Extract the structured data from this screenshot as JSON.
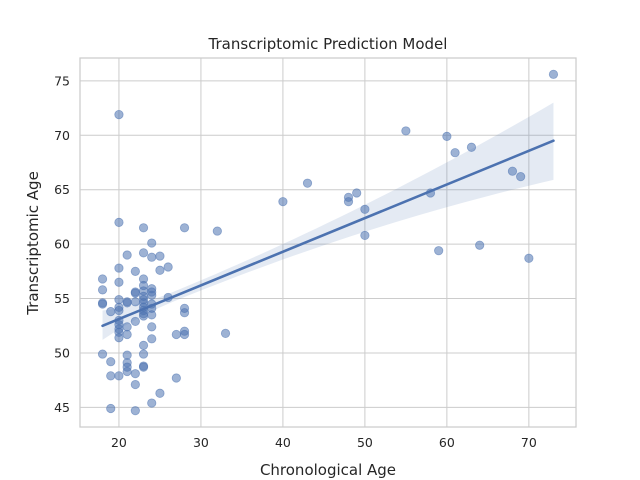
{
  "chart_data": {
    "type": "scatter",
    "title": "Transcriptomic Prediction Model",
    "xlabel": "Chronological Age",
    "ylabel": "Transcriptomic Age",
    "xlim": [
      15.25,
      75.75
    ],
    "ylim": [
      43.2,
      77.1
    ],
    "xticks": [
      20,
      30,
      40,
      50,
      60,
      70
    ],
    "yticks": [
      45,
      50,
      55,
      60,
      65,
      70,
      75
    ],
    "grid": true,
    "colors": {
      "points": "#4c72b0",
      "regression_line": "#4c72b0",
      "confidence_band": "#4c72b0",
      "grid": "#cccccc",
      "axes_edge": "#cccccc"
    },
    "regression": {
      "x": [
        18,
        73
      ],
      "y": [
        52.5,
        69.5
      ],
      "ci_lower": [
        51.2,
        65.9
      ],
      "ci_upper": [
        53.9,
        73.0
      ]
    },
    "points": [
      {
        "x": 18,
        "y": 56.8
      },
      {
        "x": 18,
        "y": 55.8
      },
      {
        "x": 18,
        "y": 54.6
      },
      {
        "x": 18,
        "y": 54.5
      },
      {
        "x": 18,
        "y": 49.9
      },
      {
        "x": 19,
        "y": 53.8
      },
      {
        "x": 19,
        "y": 49.2
      },
      {
        "x": 19,
        "y": 47.9
      },
      {
        "x": 19,
        "y": 44.9
      },
      {
        "x": 20,
        "y": 71.9
      },
      {
        "x": 20,
        "y": 62.0
      },
      {
        "x": 20,
        "y": 57.8
      },
      {
        "x": 20,
        "y": 56.5
      },
      {
        "x": 20,
        "y": 54.9
      },
      {
        "x": 20,
        "y": 54.2
      },
      {
        "x": 20,
        "y": 53.9
      },
      {
        "x": 20,
        "y": 53.0
      },
      {
        "x": 20,
        "y": 52.6
      },
      {
        "x": 20,
        "y": 52.2
      },
      {
        "x": 20,
        "y": 51.9
      },
      {
        "x": 20,
        "y": 51.4
      },
      {
        "x": 20,
        "y": 47.9
      },
      {
        "x": 21,
        "y": 59.0
      },
      {
        "x": 21,
        "y": 54.7
      },
      {
        "x": 21,
        "y": 54.6
      },
      {
        "x": 21,
        "y": 52.4
      },
      {
        "x": 21,
        "y": 51.7
      },
      {
        "x": 21,
        "y": 49.8
      },
      {
        "x": 21,
        "y": 49.1
      },
      {
        "x": 21,
        "y": 48.7
      },
      {
        "x": 21,
        "y": 48.3
      },
      {
        "x": 22,
        "y": 57.5
      },
      {
        "x": 22,
        "y": 55.6
      },
      {
        "x": 22,
        "y": 55.5
      },
      {
        "x": 22,
        "y": 54.7
      },
      {
        "x": 22,
        "y": 52.9
      },
      {
        "x": 22,
        "y": 48.1
      },
      {
        "x": 22,
        "y": 47.1
      },
      {
        "x": 22,
        "y": 44.7
      },
      {
        "x": 23,
        "y": 61.5
      },
      {
        "x": 23,
        "y": 59.2
      },
      {
        "x": 23,
        "y": 56.8
      },
      {
        "x": 23,
        "y": 56.2
      },
      {
        "x": 23,
        "y": 55.7
      },
      {
        "x": 23,
        "y": 55.2
      },
      {
        "x": 23,
        "y": 54.9
      },
      {
        "x": 23,
        "y": 54.6
      },
      {
        "x": 23,
        "y": 54.2
      },
      {
        "x": 23,
        "y": 53.9
      },
      {
        "x": 23,
        "y": 53.6
      },
      {
        "x": 23,
        "y": 53.4
      },
      {
        "x": 23,
        "y": 50.7
      },
      {
        "x": 23,
        "y": 49.9
      },
      {
        "x": 23,
        "y": 48.8
      },
      {
        "x": 23,
        "y": 48.7
      },
      {
        "x": 24,
        "y": 60.1
      },
      {
        "x": 24,
        "y": 58.8
      },
      {
        "x": 24,
        "y": 55.9
      },
      {
        "x": 24,
        "y": 55.6
      },
      {
        "x": 24,
        "y": 55.3
      },
      {
        "x": 24,
        "y": 54.5
      },
      {
        "x": 24,
        "y": 54.1
      },
      {
        "x": 24,
        "y": 53.5
      },
      {
        "x": 24,
        "y": 52.4
      },
      {
        "x": 24,
        "y": 51.3
      },
      {
        "x": 24,
        "y": 45.4
      },
      {
        "x": 25,
        "y": 58.9
      },
      {
        "x": 25,
        "y": 57.6
      },
      {
        "x": 25,
        "y": 46.3
      },
      {
        "x": 26,
        "y": 57.9
      },
      {
        "x": 26,
        "y": 55.1
      },
      {
        "x": 27,
        "y": 51.7
      },
      {
        "x": 27,
        "y": 47.7
      },
      {
        "x": 28,
        "y": 61.5
      },
      {
        "x": 28,
        "y": 54.1
      },
      {
        "x": 28,
        "y": 53.7
      },
      {
        "x": 28,
        "y": 52.0
      },
      {
        "x": 28,
        "y": 51.7
      },
      {
        "x": 32,
        "y": 61.2
      },
      {
        "x": 33,
        "y": 51.8
      },
      {
        "x": 40,
        "y": 63.9
      },
      {
        "x": 43,
        "y": 65.6
      },
      {
        "x": 48,
        "y": 64.3
      },
      {
        "x": 48,
        "y": 63.9
      },
      {
        "x": 49,
        "y": 64.7
      },
      {
        "x": 50,
        "y": 63.2
      },
      {
        "x": 50,
        "y": 60.8
      },
      {
        "x": 55,
        "y": 70.4
      },
      {
        "x": 58,
        "y": 64.7
      },
      {
        "x": 59,
        "y": 59.4
      },
      {
        "x": 60,
        "y": 69.9
      },
      {
        "x": 61,
        "y": 68.4
      },
      {
        "x": 63,
        "y": 68.9
      },
      {
        "x": 64,
        "y": 59.9
      },
      {
        "x": 68,
        "y": 66.7
      },
      {
        "x": 69,
        "y": 66.2
      },
      {
        "x": 70,
        "y": 58.7
      },
      {
        "x": 73,
        "y": 75.6
      }
    ]
  }
}
